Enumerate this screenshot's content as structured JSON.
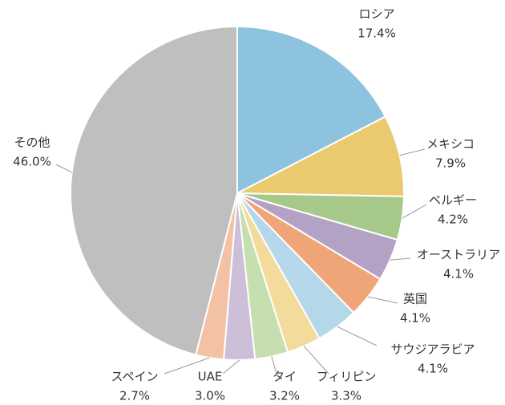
{
  "chart_data": {
    "type": "pie",
    "categories": [
      "ロシア",
      "メキシコ",
      "ベルギー",
      "オーストラリア",
      "英国",
      "サウジアラビア",
      "フィリピン",
      "タイ",
      "UAE",
      "スペイン",
      "その他"
    ],
    "values": [
      17.4,
      7.9,
      4.2,
      4.1,
      4.1,
      4.1,
      3.3,
      3.2,
      3.0,
      2.7,
      46.0
    ],
    "value_labels": [
      "17.4%",
      "7.9%",
      "4.2%",
      "4.1%",
      "4.1%",
      "4.1%",
      "3.3%",
      "3.2%",
      "3.0%",
      "2.7%",
      "46.0%"
    ],
    "colors": [
      "#8ec3df",
      "#ebc96e",
      "#a6c98a",
      "#b3a2c4",
      "#f0a578",
      "#b5d7ea",
      "#f2db9b",
      "#c5dfb0",
      "#cdbfd7",
      "#f3c1a3",
      "#bfbfbf"
    ]
  }
}
